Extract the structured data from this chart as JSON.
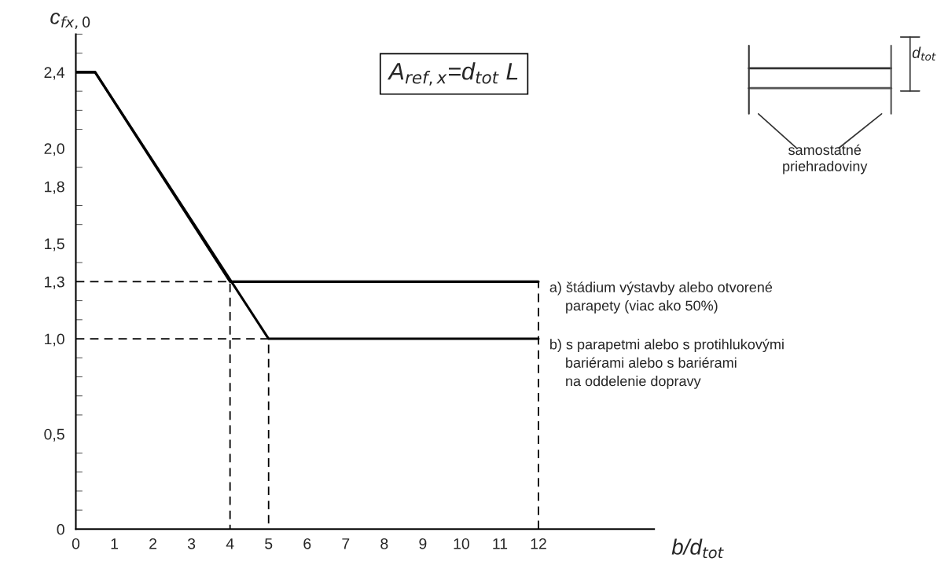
{
  "chart_data": {
    "type": "line",
    "xlabel": "b/d$_{tot}$",
    "ylabel": "c$_{fx,0}$",
    "xlim": [
      0,
      15
    ],
    "xticks": [
      0,
      1,
      2,
      3,
      4,
      5,
      6,
      7,
      8,
      9,
      10,
      11,
      12
    ],
    "ylim": [
      0,
      2.6
    ],
    "yticks": [
      0,
      {
        "value": 0.5,
        "label": "0,5"
      },
      {
        "value": 1.0,
        "label": "1,0"
      },
      {
        "value": 1.3,
        "label": "1,3"
      },
      {
        "value": 1.5,
        "label": "1,5"
      },
      {
        "value": 1.8,
        "label": "1,8"
      },
      {
        "value": 2.0,
        "label": "2,0"
      },
      {
        "value": 2.4,
        "label": "2,4"
      }
    ],
    "grid": false,
    "marker": "none",
    "series": [
      {
        "color": "#000000",
        "line_style": "solid",
        "x": [
          0,
          0.5,
          4,
          12
        ],
        "values": [
          2.4,
          2.4,
          1.3,
          1.3
        ]
      },
      {
        "color": "#000000",
        "line_style": "solid",
        "x": [
          0,
          0.5,
          5,
          12
        ],
        "values": [
          2.4,
          2.4,
          1.0,
          1.0
        ]
      },
      {
        "color": "#000000",
        "line_style": "dashed",
        "x": [
          0,
          4,
          4
        ],
        "values": [
          1.3,
          1.3,
          0
        ]
      },
      {
        "color": "#000000",
        "line_style": "dashed",
        "x": [
          0,
          5,
          5
        ],
        "values": [
          1.0,
          1.0,
          0
        ]
      },
      {
        "color": "#000000",
        "line_style": "dashed",
        "x": [
          12,
          12
        ],
        "values": [
          0,
          1.3
        ]
      }
    ],
    "annotations": [
      {
        "text": "a) štádium výstavby alebo otvorené\n    parapety (viac ako 50%)",
        "x": 12,
        "y": 1.3
      },
      {
        "text": "b) s parapetmi alebo s protihlukovými\n    bariérami alebo s bariérami\n    na oddelenie dopravy",
        "x": 12,
        "y": 1.0
      },
      "A$_{ref,x}$=d$_{tot}$ L",
      "samostatné\npriehradoviny",
      "d$_{tot}$"
    ]
  }
}
